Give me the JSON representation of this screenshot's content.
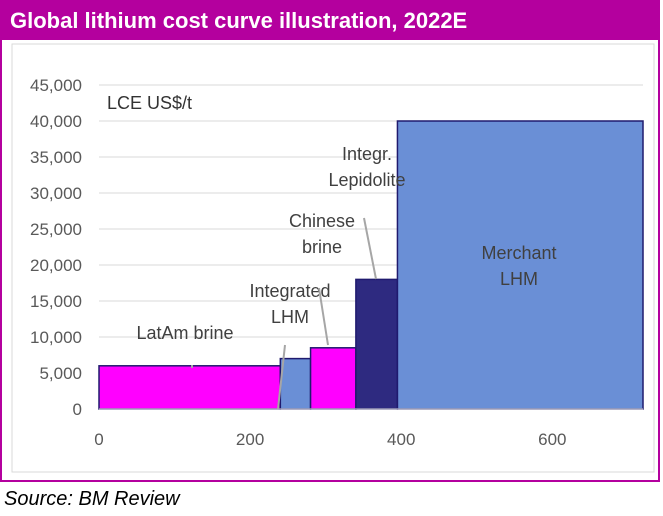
{
  "header": {
    "title": "Global lithium cost curve illustration, 2022E"
  },
  "footer": {
    "source": "Source: BM Review"
  },
  "colors": {
    "accent": "#b4009e",
    "magenta": "#ff00ff",
    "blue": "#6a8fd6",
    "navy": "#2e2a80",
    "edge": "#1f1a6e"
  },
  "chart_data": {
    "type": "bar",
    "subtype": "cost-curve (variable-width bars)",
    "ylabel": "LCE US$/t",
    "xlim": [
      0,
      720
    ],
    "ylim": [
      0,
      45000
    ],
    "x_ticks": [
      0,
      200,
      400,
      600
    ],
    "y_ticks": [
      0,
      5000,
      10000,
      15000,
      20000,
      25000,
      30000,
      35000,
      40000,
      45000
    ],
    "x_tick_labels": [
      "0",
      "200",
      "400",
      "600"
    ],
    "y_tick_labels": [
      "0",
      "5,000",
      "10,000",
      "15,000",
      "20,000",
      "25,000",
      "30,000",
      "35,000",
      "40,000",
      "45,000"
    ],
    "grid": true,
    "segments": [
      {
        "label": "LatAm brine",
        "x0": 0,
        "x1": 240,
        "value": 6000,
        "color": "magenta"
      },
      {
        "label": "Integrated LHM",
        "x0": 240,
        "x1": 280,
        "value": 7000,
        "color": "blue"
      },
      {
        "label": "Chinese brine",
        "x0": 280,
        "x1": 340,
        "value": 8500,
        "color": "magenta"
      },
      {
        "label": "Integr. Lepidolite",
        "x0": 340,
        "x1": 395,
        "value": 18000,
        "color": "navy"
      },
      {
        "label": "Merchant LHM",
        "x0": 395,
        "x1": 720,
        "value": 40000,
        "color": "blue"
      }
    ],
    "annotations": [
      {
        "lines": [
          "LatAm brine"
        ]
      },
      {
        "lines": [
          "Integrated",
          "LHM"
        ]
      },
      {
        "lines": [
          "Chinese",
          "brine"
        ]
      },
      {
        "lines": [
          "Integr.",
          "Lepidolite"
        ]
      },
      {
        "lines": [
          "Merchant",
          "LHM"
        ]
      }
    ]
  }
}
